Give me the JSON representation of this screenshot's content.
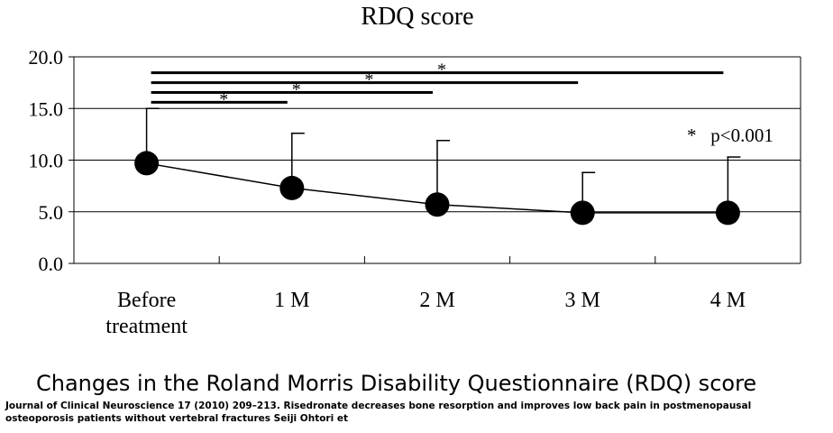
{
  "chart_data": {
    "type": "line",
    "title": "RDQ score",
    "categories": [
      "Before treatment",
      "1 M",
      "2 M",
      "3 M",
      "4 M"
    ],
    "category_lines": [
      [
        "Before",
        "treatment"
      ],
      [
        "1 M"
      ],
      [
        "2 M"
      ],
      [
        "3 M"
      ],
      [
        "4 M"
      ]
    ],
    "series": [
      {
        "values": [
          9.7,
          7.3,
          5.7,
          4.9,
          4.9
        ],
        "error_upper": [
          15.0,
          12.6,
          11.9,
          8.8,
          10.3
        ]
      }
    ],
    "ylim": [
      0,
      20
    ],
    "y_ticks": [
      "0.0",
      "5.0",
      "10.0",
      "15.0",
      "20.0"
    ],
    "grid": "horizontal",
    "significance_bars": [
      {
        "from": "Before treatment",
        "to": "1 M",
        "label": "*"
      },
      {
        "from": "Before treatment",
        "to": "2 M",
        "label": "*"
      },
      {
        "from": "Before treatment",
        "to": "3 M",
        "label": "*"
      },
      {
        "from": "Before treatment",
        "to": "4 M",
        "label": "*"
      }
    ],
    "annotation": "*   p<0.001"
  },
  "caption": "Changes in the Roland Morris Disability Questionnaire (RDQ) score",
  "citation": "Journal of Clinical Neuroscience 17 (2010) 209–213. Risedronate decreases bone resorption and improves low back pain in postmenopausal osteoporosis patients without vertebral fractures Seiji Ohtori et"
}
